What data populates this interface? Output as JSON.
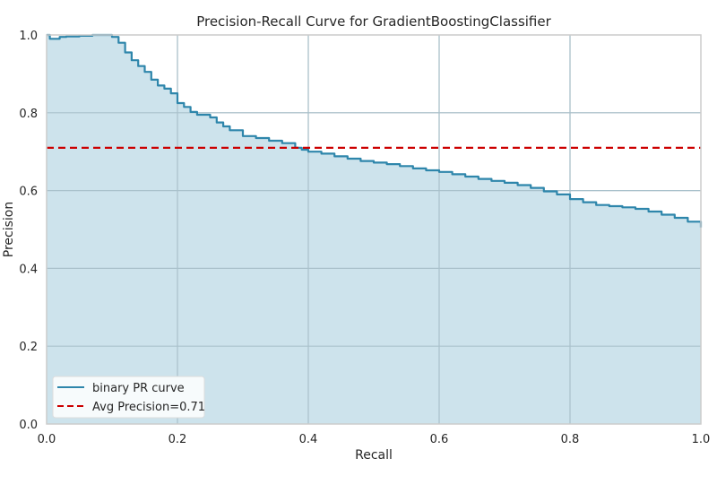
{
  "chart_data": {
    "type": "line",
    "title": "Precision-Recall Curve for GradientBoostingClassifier",
    "xlabel": "Recall",
    "ylabel": "Precision",
    "xlim": [
      0.0,
      1.0
    ],
    "ylim": [
      0.0,
      1.0
    ],
    "xticks": [
      "0.0",
      "0.2",
      "0.4",
      "0.6",
      "0.8",
      "1.0"
    ],
    "yticks": [
      "0.0",
      "0.2",
      "0.4",
      "0.6",
      "0.8",
      "1.0"
    ],
    "grid": true,
    "legend_position": "lower-left",
    "series": [
      {
        "name": "binary PR curve",
        "style": "solid",
        "color": "#2e86ab",
        "fill_color": "#cde3ec",
        "x": [
          0.0,
          0.005,
          0.01,
          0.02,
          0.03,
          0.05,
          0.07,
          0.09,
          0.1,
          0.11,
          0.12,
          0.13,
          0.14,
          0.15,
          0.16,
          0.17,
          0.18,
          0.19,
          0.2,
          0.21,
          0.22,
          0.23,
          0.25,
          0.26,
          0.27,
          0.28,
          0.3,
          0.32,
          0.34,
          0.36,
          0.38,
          0.39,
          0.4,
          0.42,
          0.44,
          0.46,
          0.48,
          0.5,
          0.52,
          0.54,
          0.56,
          0.58,
          0.6,
          0.62,
          0.64,
          0.66,
          0.68,
          0.7,
          0.72,
          0.74,
          0.76,
          0.78,
          0.8,
          0.82,
          0.84,
          0.86,
          0.88,
          0.9,
          0.92,
          0.94,
          0.96,
          0.98,
          1.0
        ],
        "y": [
          1.0,
          0.99,
          0.99,
          0.995,
          0.996,
          0.998,
          1.0,
          1.0,
          0.995,
          0.98,
          0.955,
          0.935,
          0.92,
          0.905,
          0.885,
          0.87,
          0.862,
          0.85,
          0.825,
          0.815,
          0.802,
          0.795,
          0.788,
          0.775,
          0.765,
          0.755,
          0.74,
          0.735,
          0.728,
          0.722,
          0.71,
          0.705,
          0.7,
          0.695,
          0.688,
          0.682,
          0.676,
          0.672,
          0.668,
          0.663,
          0.657,
          0.652,
          0.648,
          0.642,
          0.636,
          0.63,
          0.625,
          0.62,
          0.614,
          0.607,
          0.598,
          0.59,
          0.578,
          0.57,
          0.563,
          0.56,
          0.557,
          0.553,
          0.546,
          0.538,
          0.53,
          0.52,
          0.505
        ]
      },
      {
        "name": "Avg Precision=0.71",
        "style": "dashed",
        "color": "#cc0000",
        "x": [
          0.0,
          1.0
        ],
        "y": [
          0.71,
          0.71
        ]
      }
    ]
  }
}
